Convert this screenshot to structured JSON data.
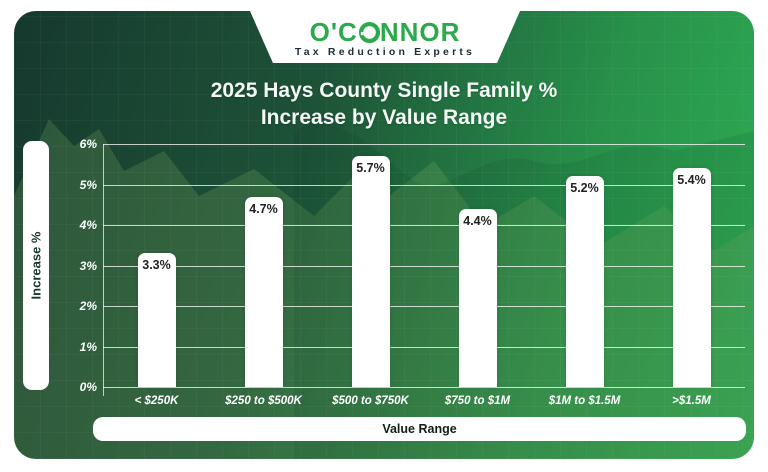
{
  "logo": {
    "brand": "O'CONNOR",
    "brand_prefix": "O'C",
    "brand_suffix": "NNOR",
    "tagline": "Tax Reduction Experts",
    "brand_color": "#2baa4d",
    "tagline_color": "#1d2c38"
  },
  "chart_data": {
    "type": "bar",
    "title": "2025 Hays County Single Family % Increase by Value Range",
    "title_lines": [
      "2025 Hays County Single Family %",
      "Increase by Value Range"
    ],
    "categories": [
      "< $250K",
      "$250 to $500K",
      "$500 to $750K",
      "$750 to $1M",
      "$1M to $1.5M",
      ">$1.5M"
    ],
    "values": [
      3.3,
      4.7,
      5.7,
      4.4,
      5.2,
      5.4
    ],
    "value_labels": [
      "3.3%",
      "4.7%",
      "5.7%",
      "4.4%",
      "5.2%",
      "5.4%"
    ],
    "xlabel": "Value Range",
    "ylabel": "Increase %",
    "y_ticks": [
      "6%",
      "5%",
      "4%",
      "3%",
      "2%",
      "1%",
      "0%"
    ],
    "ylim": [
      0,
      6
    ],
    "grid": true,
    "legend": "none",
    "colors": {
      "bar": "#ffffff",
      "bar_label": "#212421",
      "bg_dark": "#16392e",
      "bg_bright": "#2fb054",
      "gridline": "rgba(255,255,255,0.75)",
      "tick_text": "#ffffff"
    }
  }
}
